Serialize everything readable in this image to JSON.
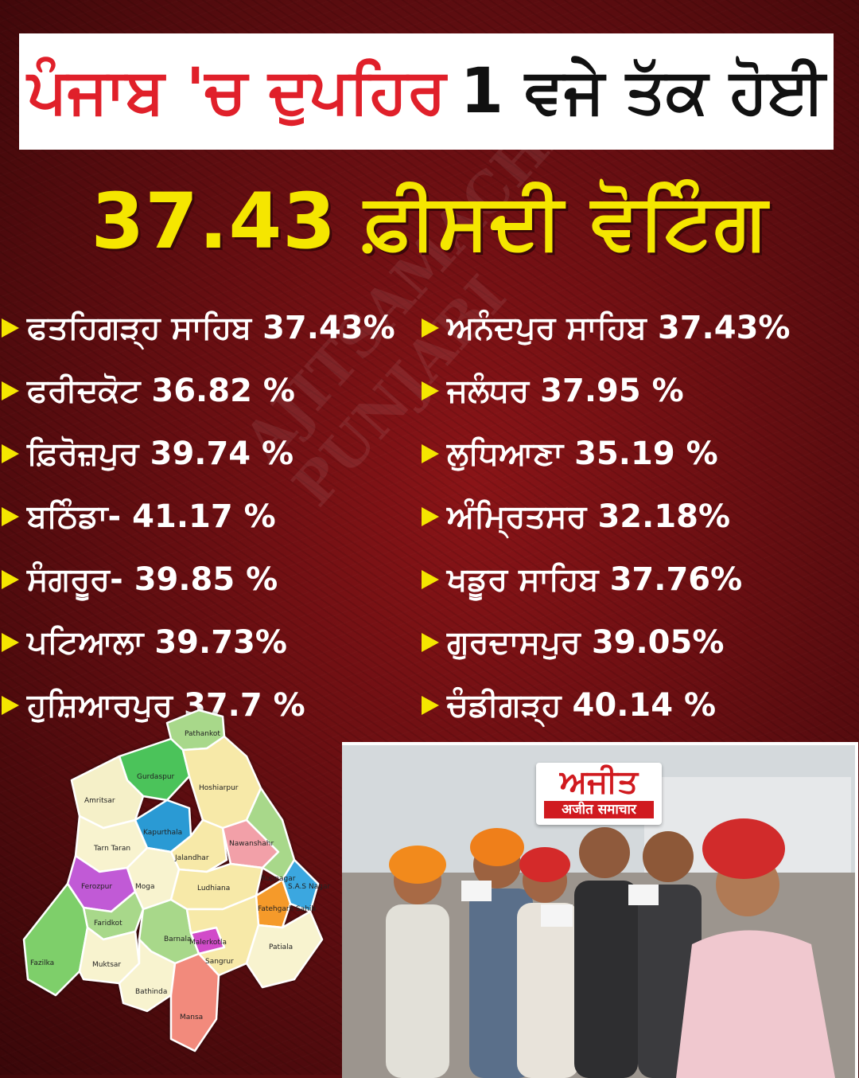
{
  "headline": {
    "part_red": "ਪੰਜਾਬ 'ਚ ਦੁਪਹਿਰ",
    "part_black": "1 ਵਜੇ ਤੱਕ ਹੋਈ"
  },
  "subheadline": "37.43 ਫ਼ੀਸਦੀ ਵੋਟਿੰਗ",
  "left_list": [
    {
      "name": "ਫਤਹਿਗੜ੍ਹ ਸਾਹਿਬ",
      "value": "37.43%"
    },
    {
      "name": "ਫਰੀਦਕੋਟ",
      "value": "36.82 %"
    },
    {
      "name": "ਫ਼ਿਰੋਜ਼ਪੁਰ",
      "value": "39.74 %"
    },
    {
      "name": "ਬਠਿੰਡਾ-",
      "value": "41.17 %"
    },
    {
      "name": "ਸੰਗਰੂਰ-",
      "value": "39.85 %"
    },
    {
      "name": "ਪਟਿਆਲਾ",
      "value": "39.73%"
    },
    {
      "name": "ਹੁਸ਼ਿਆਰਪੁਰ",
      "value": "37.7 %"
    }
  ],
  "right_list": [
    {
      "name": "ਅਨੰਦਪੁਰ ਸਾਹਿਬ",
      "value": "37.43%"
    },
    {
      "name": "ਜਲੰਧਰ",
      "value": "37.95 %"
    },
    {
      "name": "ਲੁਧਿਆਣਾ",
      "value": "35.19 %"
    },
    {
      "name": "ਅੰਮ੍ਰਿਤਸਰ",
      "value": "32.18%"
    },
    {
      "name": "ਖਡੂਰ ਸਾਹਿਬ",
      "value": "37.76%"
    },
    {
      "name": "ਗੁਰਦਾਸਪੁਰ",
      "value": "39.05%"
    },
    {
      "name": "ਚੰਡੀਗੜ੍ਹ",
      "value": "40.14 %"
    }
  ],
  "map": {
    "labels": {
      "pathankot": "Pathankot",
      "gurdaspur": "Gurdaspur",
      "amritsar": "Amritsar",
      "hoshiarpur": "Hoshiarpur",
      "tarn_taran": "Tarn Taran",
      "kapurthala": "Kapurthala",
      "jalandhar": "Jalandhar",
      "nawanshahr": "Nawanshahr",
      "ferozpur": "Ferozpur",
      "rupnagar": "Rupnagar",
      "sas_nagar": "S.A.S Nagar",
      "moga": "Moga",
      "ludhiana": "Ludhiana",
      "faridkot": "Faridkot",
      "fatehgarh": "Fatehgarh Sahib",
      "malerkotla": "Malerkotla",
      "fazilka": "Fazilka",
      "muktsar": "Muktsar",
      "barnala": "Barnala",
      "sangrur": "Sangrur",
      "patiala": "Patiala",
      "bathinda": "Bathinda",
      "mansa": "Mansa"
    }
  },
  "photo": {
    "logo_main": "ਅਜੀਤ",
    "logo_sub": "अजीत समाचार"
  },
  "colors": {
    "headline_red": "#e0202a",
    "accent_yellow": "#f5e600",
    "background": "#6b0f12"
  }
}
